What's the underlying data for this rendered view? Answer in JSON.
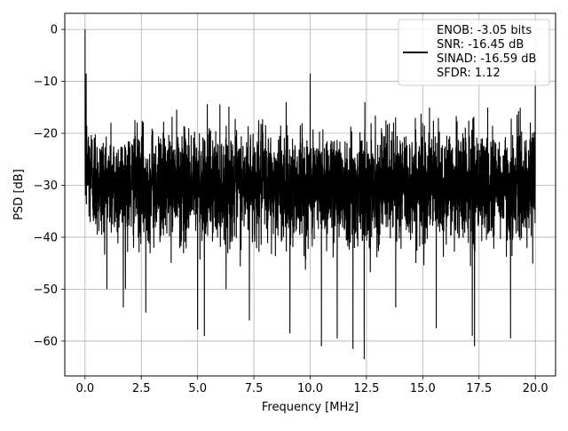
{
  "chart_data": {
    "type": "line",
    "xlabel": "Frequency [MHz]",
    "ylabel": "PSD [dB]",
    "xlim": [
      -0.9,
      20.9
    ],
    "ylim": [
      -66.7,
      3.1
    ],
    "xticks": [
      0.0,
      2.5,
      5.0,
      7.5,
      10.0,
      12.5,
      15.0,
      17.5,
      20.0
    ],
    "xtick_labels": [
      "0.0",
      "2.5",
      "5.0",
      "7.5",
      "10.0",
      "12.5",
      "15.0",
      "17.5",
      "20.0"
    ],
    "yticks": [
      0,
      -10,
      -20,
      -30,
      -40,
      -50,
      -60
    ],
    "ytick_labels": [
      "0",
      "−10",
      "−20",
      "−30",
      "−40",
      "−50",
      "−60"
    ],
    "grid": true,
    "legend_placement": "upper right",
    "legend_lines": [
      "ENOB: -3.05 bits",
      "SNR: -16.45 dB",
      "SINAD: -16.59 dB",
      "SFDR: 1.12"
    ],
    "series_color": "#000000",
    "noise_floor": {
      "x_range": [
        0.0,
        20.0
      ],
      "typical_upper_db": -20,
      "typical_lower_db": -42,
      "median_db": -30
    },
    "spikes": [
      {
        "x": 0.0,
        "y": 0.0
      },
      {
        "x": 0.05,
        "y": -8.5
      },
      {
        "x": 10.0,
        "y": -8.5
      },
      {
        "x": 20.0,
        "y": -8.0
      }
    ],
    "deep_dips": [
      {
        "x": 1.7,
        "y": -53.5
      },
      {
        "x": 2.7,
        "y": -54.5
      },
      {
        "x": 5.0,
        "y": -57.8
      },
      {
        "x": 5.3,
        "y": -59.0
      },
      {
        "x": 7.3,
        "y": -56.0
      },
      {
        "x": 9.1,
        "y": -58.5
      },
      {
        "x": 10.5,
        "y": -61.0
      },
      {
        "x": 11.2,
        "y": -59.5
      },
      {
        "x": 11.9,
        "y": -61.5
      },
      {
        "x": 12.4,
        "y": -63.5
      },
      {
        "x": 13.8,
        "y": -53.5
      },
      {
        "x": 15.6,
        "y": -57.5
      },
      {
        "x": 17.2,
        "y": -59.0
      },
      {
        "x": 17.3,
        "y": -61.0
      },
      {
        "x": 18.9,
        "y": -59.5
      }
    ]
  }
}
